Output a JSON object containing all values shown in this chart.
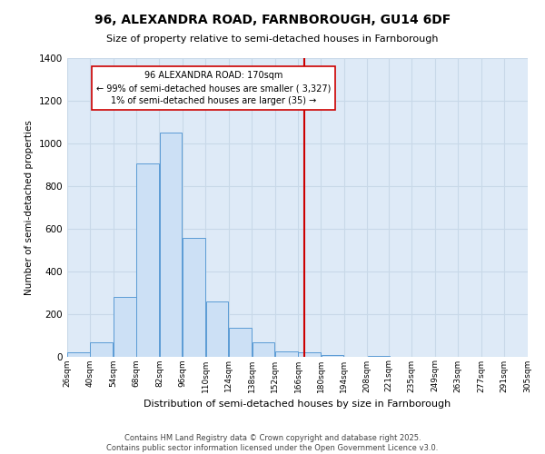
{
  "title": "96, ALEXANDRA ROAD, FARNBOROUGH, GU14 6DF",
  "subtitle": "Size of property relative to semi-detached houses in Farnborough",
  "xlabel": "Distribution of semi-detached houses by size in Farnborough",
  "ylabel": "Number of semi-detached properties",
  "bar_values": [
    20,
    65,
    280,
    905,
    1050,
    555,
    258,
    135,
    65,
    25,
    18,
    5,
    0,
    2,
    0,
    0,
    0,
    0,
    0,
    0
  ],
  "bin_edges": [
    26,
    40,
    54,
    68,
    82,
    96,
    110,
    124,
    138,
    152,
    166,
    180,
    194,
    208,
    221,
    235,
    249,
    263,
    277,
    291,
    305
  ],
  "tick_labels": [
    "26sqm",
    "40sqm",
    "54sqm",
    "68sqm",
    "82sqm",
    "96sqm",
    "110sqm",
    "124sqm",
    "138sqm",
    "152sqm",
    "166sqm",
    "180sqm",
    "194sqm",
    "208sqm",
    "221sqm",
    "235sqm",
    "249sqm",
    "263sqm",
    "277sqm",
    "291sqm",
    "305sqm"
  ],
  "bar_facecolor": "#cce0f5",
  "bar_edgecolor": "#5b9bd5",
  "vline_x": 170,
  "vline_color": "#cc0000",
  "annotation_title": "96 ALEXANDRA ROAD: 170sqm",
  "annotation_line1": "← 99% of semi-detached houses are smaller ( 3,327)",
  "annotation_line2": "1% of semi-detached houses are larger (35) →",
  "annotation_box_edgecolor": "#cc0000",
  "ylim": [
    0,
    1400
  ],
  "yticks": [
    0,
    200,
    400,
    600,
    800,
    1000,
    1200,
    1400
  ],
  "grid_color": "#c8d8e8",
  "background_color": "#deeaf7",
  "footer1": "Contains HM Land Registry data © Crown copyright and database right 2025.",
  "footer2": "Contains public sector information licensed under the Open Government Licence v3.0."
}
